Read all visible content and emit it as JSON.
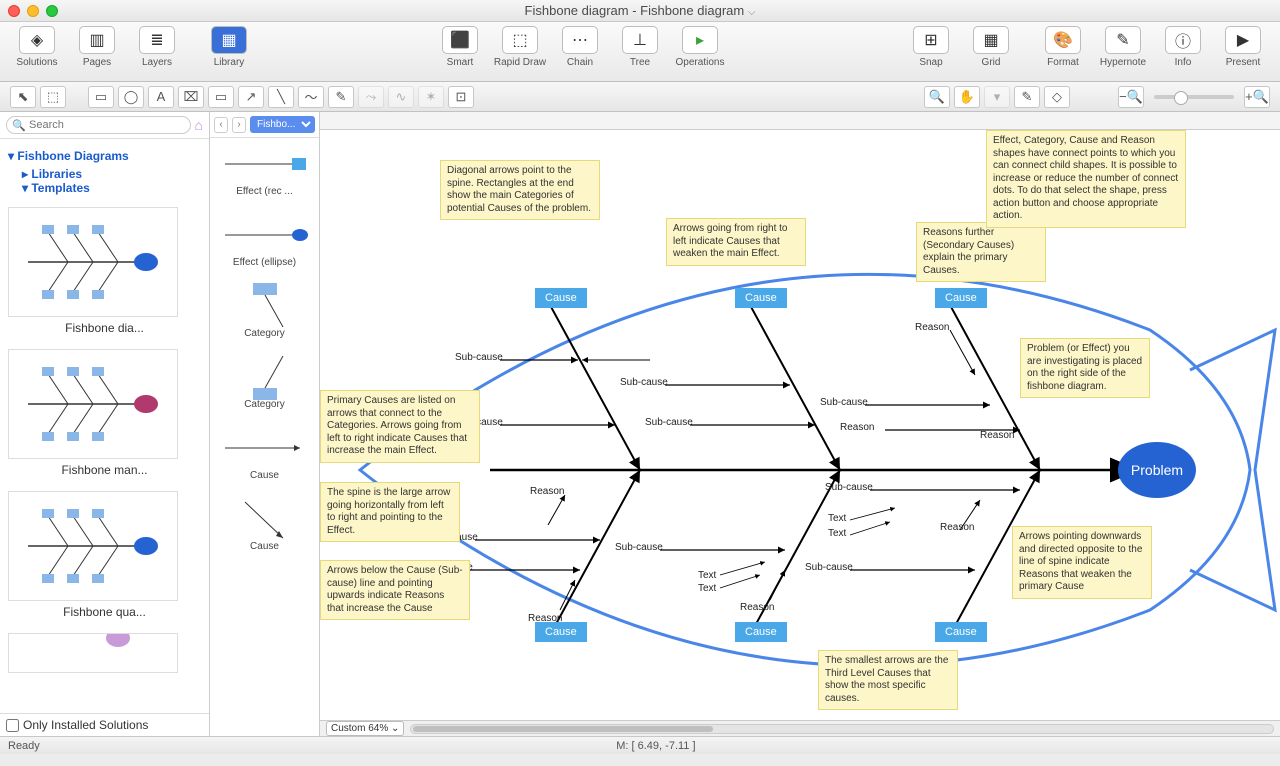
{
  "window": {
    "title": "Fishbone diagram - Fishbone diagram"
  },
  "toolbar": {
    "solutions": "Solutions",
    "pages": "Pages",
    "layers": "Layers",
    "library": "Library",
    "smart": "Smart",
    "rapid": "Rapid Draw",
    "chain": "Chain",
    "tree": "Tree",
    "operations": "Operations",
    "snap": "Snap",
    "grid": "Grid",
    "format": "Format",
    "hypernote": "Hypernote",
    "info": "Info",
    "present": "Present"
  },
  "search": {
    "placeholder": "Search"
  },
  "tree": {
    "root": "Fishbone Diagrams",
    "libraries": "Libraries",
    "templates": "Templates"
  },
  "templates": [
    {
      "label": "Fishbone dia...",
      "accent": "#2463d1"
    },
    {
      "label": "Fishbone man...",
      "accent": "#b03a6e"
    },
    {
      "label": "Fishbone qua...",
      "accent": "#2463d1"
    }
  ],
  "only_installed": "Only Installed Solutions",
  "stencil": {
    "selector": "Fishbo...",
    "items": [
      {
        "label": "Effect (rec ...",
        "kind": "effect-rect"
      },
      {
        "label": "Effect (ellipse)",
        "kind": "effect-ellipse"
      },
      {
        "label": "Category",
        "kind": "category-down"
      },
      {
        "label": "Category",
        "kind": "category-up"
      },
      {
        "label": "Cause",
        "kind": "cause-h"
      },
      {
        "label": "Cause",
        "kind": "cause-diag"
      }
    ]
  },
  "diagram": {
    "spine_color": "#4a86e8",
    "line_color": "#000000",
    "cause_bg": "#4aa8e8",
    "note_bg": "#fdf6c8",
    "problem_bg": "#2463d1",
    "problem_label": "Problem",
    "cause_label": "Cause",
    "labels": {
      "subcause": "Sub-cause",
      "reason": "Reason",
      "text": "Text"
    },
    "notes": {
      "n1": "Diagonal arrows point to the spine. Rectangles at the end show the main Categories of potential Causes of the problem.",
      "n2": "Arrows going from right to left indicate Causes that weaken the main Effect.",
      "n3": "Reasons further (Secondary Causes) explain the primary Causes.",
      "n4": "Effect, Category, Cause and Reason shapes have connect points to which you can connect child shapes. It is possible to increase or reduce the number of connect dots. To do that select the shape, press action button and choose appropriate action.",
      "n5": "Problem (or Effect) you are investigating is placed on the right side of the fishbone diagram.",
      "n6": "Primary Causes are listed on arrows that connect to the Categories. Arrows going from left to right indicate Causes that increase the main Effect.",
      "n7": "The spine is the large arrow going horizontally from left to right and pointing to the Effect.",
      "n8": "Arrows below the Cause (Sub-cause) line and pointing upwards indicate Reasons that increase the Cause",
      "n9": "Arrows pointing downwards and directed opposite to the line of spine indicate Reasons that weaken the primary Cause",
      "n10": "The smallest arrows are the Third Level Causes that show the most specific causes."
    }
  },
  "zoom": {
    "label": "Custom 64%"
  },
  "status": {
    "ready": "Ready",
    "coords": "M: [ 6.49, -7.11 ]"
  }
}
